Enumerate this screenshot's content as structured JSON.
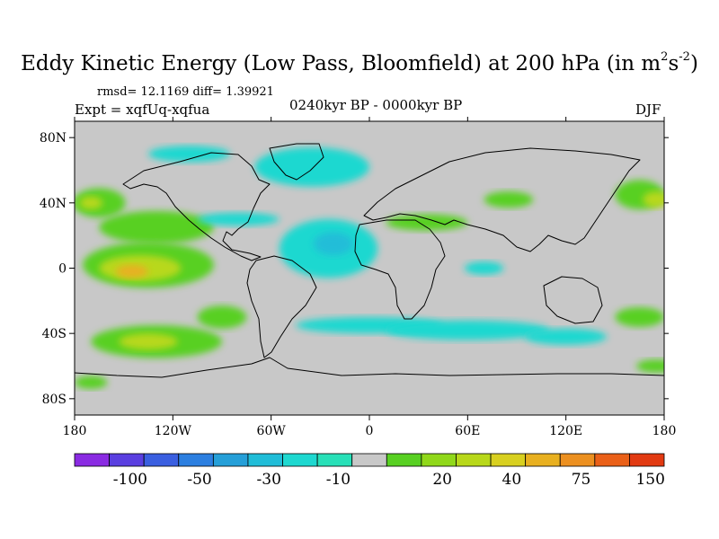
{
  "title": {
    "main": "Eddy Kinetic Energy (Low Pass, Bloomfield) at 200 hPa (in m",
    "sup1": "2",
    "mid": "s",
    "sup2": "-2",
    "close": ")"
  },
  "stats": {
    "rmsd": "rmsd= 12.1169 diff= 1.39921",
    "expt": "Expt = xqfUq-xqfua",
    "period": "0240kyr BP - 0000kyr BP",
    "season": "DJF"
  },
  "chart_data": {
    "type": "heatmap",
    "projection": "cylindrical-equidistant",
    "xlim": [
      -180,
      180
    ],
    "ylim": [
      -90,
      90
    ],
    "x_ticks": [
      {
        "lon": -180,
        "label": "180"
      },
      {
        "lon": -120,
        "label": "120W"
      },
      {
        "lon": -60,
        "label": "60W"
      },
      {
        "lon": 0,
        "label": "0"
      },
      {
        "lon": 60,
        "label": "60E"
      },
      {
        "lon": 120,
        "label": "120E"
      },
      {
        "lon": 180,
        "label": "180"
      }
    ],
    "y_ticks": [
      {
        "lat": 80,
        "label": "80N"
      },
      {
        "lat": 40,
        "label": "40N"
      },
      {
        "lat": 0,
        "label": "0"
      },
      {
        "lat": -40,
        "label": "40S"
      },
      {
        "lat": -80,
        "label": "80S"
      }
    ],
    "colorbar": {
      "colors": [
        "#8a2be2",
        "#5a3fe0",
        "#3a5fe0",
        "#2c7fe0",
        "#259fd8",
        "#20bdd8",
        "#1ed8d0",
        "#28e0b8",
        "#c8c8c8",
        "#58d022",
        "#90d81a",
        "#b8d81a",
        "#d8d020",
        "#e8b020",
        "#ec9020",
        "#ea6018",
        "#e23a12"
      ],
      "levels": [
        "-100",
        "-50",
        "-30",
        "-10",
        "20",
        "40",
        "75",
        "150"
      ]
    },
    "fields": [
      {
        "name": "north-pacific-positive",
        "color": "#58d022",
        "lon": -165,
        "lat": 40,
        "rx": 16,
        "ry": 9
      },
      {
        "name": "north-pacific-positive-core",
        "color": "#b8d81a",
        "lon": -170,
        "lat": 40,
        "rx": 7,
        "ry": 4
      },
      {
        "name": "east-pacific-band",
        "color": "#58d022",
        "lon": -130,
        "lat": 25,
        "rx": 35,
        "ry": 10
      },
      {
        "name": "tropical-pacific-positive",
        "color": "#58d022",
        "lon": -135,
        "lat": 2,
        "rx": 40,
        "ry": 14
      },
      {
        "name": "tropical-pacific-strong",
        "color": "#b8d81a",
        "lon": -140,
        "lat": 0,
        "rx": 25,
        "ry": 8
      },
      {
        "name": "tropical-pacific-core",
        "color": "#e8b020",
        "lon": -145,
        "lat": -2,
        "rx": 10,
        "ry": 4
      },
      {
        "name": "south-pacific-positive",
        "color": "#58d022",
        "lon": -130,
        "lat": -45,
        "rx": 40,
        "ry": 10
      },
      {
        "name": "south-pacific-strong",
        "color": "#b8d81a",
        "lon": -135,
        "lat": -45,
        "rx": 18,
        "ry": 5
      },
      {
        "name": "south-pacific-east",
        "color": "#58d022",
        "lon": -90,
        "lat": -30,
        "rx": 15,
        "ry": 7
      },
      {
        "name": "north-atlantic-negative",
        "color": "#1ed8d0",
        "lon": -35,
        "lat": 62,
        "rx": 35,
        "ry": 12
      },
      {
        "name": "atlantic-negative",
        "color": "#1ed8d0",
        "lon": -25,
        "lat": 12,
        "rx": 30,
        "ry": 18
      },
      {
        "name": "atlantic-negative-core",
        "color": "#20bdd8",
        "lon": -22,
        "lat": 15,
        "rx": 12,
        "ry": 7
      },
      {
        "name": "south-atlantic-negative",
        "color": "#1ed8d0",
        "lon": 0,
        "lat": -35,
        "rx": 45,
        "ry": 5
      },
      {
        "name": "south-indian-negative",
        "color": "#1ed8d0",
        "lon": 60,
        "lat": -38,
        "rx": 50,
        "ry": 6
      },
      {
        "name": "south-indian-east",
        "color": "#1ed8d0",
        "lon": 120,
        "lat": -42,
        "rx": 25,
        "ry": 5
      },
      {
        "name": "tropical-atlantic-negative",
        "color": "#1ed8d0",
        "lon": -80,
        "lat": 30,
        "rx": 25,
        "ry": 4
      },
      {
        "name": "mediterranean-positive",
        "color": "#58d022",
        "lon": 35,
        "lat": 28,
        "rx": 25,
        "ry": 5
      },
      {
        "name": "central-asia-positive",
        "color": "#58d022",
        "lon": 85,
        "lat": 42,
        "rx": 15,
        "ry": 5
      },
      {
        "name": "northwest-pacific-positive",
        "color": "#58d022",
        "lon": 165,
        "lat": 45,
        "rx": 15,
        "ry": 9
      },
      {
        "name": "northwest-pacific-core",
        "color": "#b8d81a",
        "lon": 175,
        "lat": 42,
        "rx": 8,
        "ry": 5
      },
      {
        "name": "southwest-pacific-positive",
        "color": "#58d022",
        "lon": 165,
        "lat": -30,
        "rx": 15,
        "ry": 6
      },
      {
        "name": "high-south-positive",
        "color": "#58d022",
        "lon": -170,
        "lat": -70,
        "rx": 10,
        "ry": 4
      },
      {
        "name": "high-south-east",
        "color": "#58d022",
        "lon": 175,
        "lat": -60,
        "rx": 12,
        "ry": 4
      },
      {
        "name": "arctic-negative",
        "color": "#1ed8d0",
        "lon": -110,
        "lat": 70,
        "rx": 25,
        "ry": 5
      },
      {
        "name": "india-negative",
        "color": "#1ed8d0",
        "lon": 70,
        "lat": 0,
        "rx": 12,
        "ry": 4
      }
    ]
  }
}
